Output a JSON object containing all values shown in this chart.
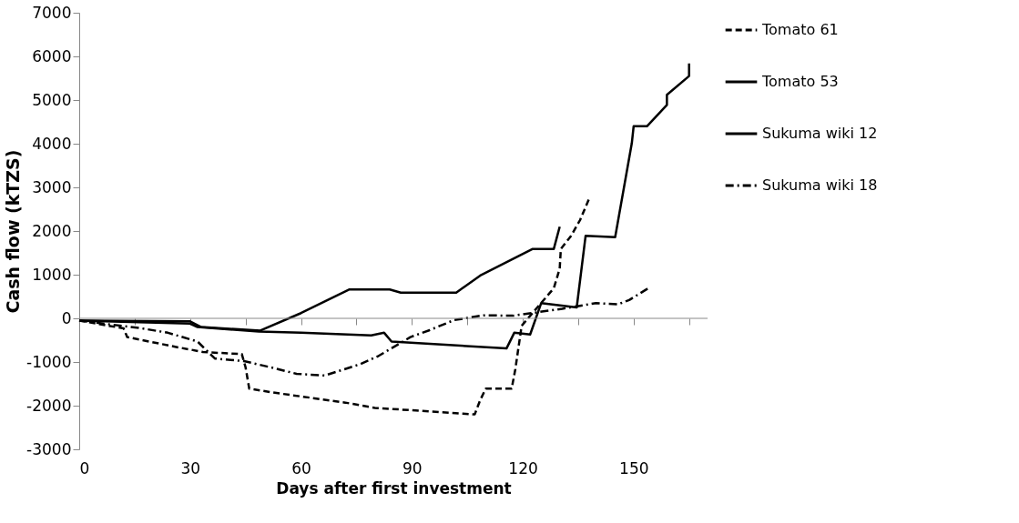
{
  "chart_data": {
    "type": "line",
    "xlabel": "Days after first investment",
    "ylabel": "Cash flow (kTZS)",
    "xlim": [
      0,
      170
    ],
    "ylim": [
      -3000,
      7000
    ],
    "xticks": [
      0,
      {
        "value": 15,
        "label": null
      },
      30,
      {
        "value": 45,
        "label": null
      },
      60,
      {
        "value": 75,
        "label": null
      },
      90,
      {
        "value": 105,
        "label": null
      },
      120,
      {
        "value": 135,
        "label": null
      },
      150,
      {
        "value": 165,
        "label": null
      }
    ],
    "yticks": [
      -3000,
      -2000,
      -1000,
      0,
      1000,
      2000,
      3000,
      4000,
      5000,
      6000,
      7000
    ],
    "grid": false,
    "ref_lines": [
      {
        "axis": "y",
        "value": 0,
        "color": "#888888",
        "line_style": "solid"
      }
    ],
    "legend": "right",
    "marker": "none",
    "series": [
      {
        "name": "Tomato 61",
        "color": "#000000",
        "line_style": "dashed",
        "x": [
          0,
          12,
          13,
          26.5,
          33.5,
          44,
          45,
          46,
          52.5,
          72,
          80,
          107,
          108.5,
          110,
          117,
          118,
          119.7,
          128.4,
          130,
          130.3,
          133,
          135.5,
          138
        ],
        "values": [
          -50,
          -230,
          -430,
          -660,
          -770,
          -820,
          -1120,
          -1610,
          -1700,
          -1930,
          -2050,
          -2200,
          -1870,
          -1610,
          -1610,
          -1160,
          -170,
          690,
          1140,
          1590,
          1880,
          2250,
          2750
        ]
      },
      {
        "name": "Tomato 53",
        "color": "#000000",
        "line_style": "solid",
        "x": [
          0,
          30,
          33,
          49,
          60,
          73,
          84,
          87,
          102,
          108.5,
          122.7,
          128.4,
          130
        ],
        "values": [
          -50,
          -70,
          -200,
          -280,
          120,
          660,
          660,
          590,
          590,
          980,
          1590,
          1590,
          2100
        ]
      },
      {
        "name": "Sukuma wiki 12",
        "color": "#000000",
        "line_style": "solid",
        "x": [
          0,
          30,
          32,
          48.6,
          60,
          79,
          82.5,
          84.5,
          115.6,
          117.7,
          122,
          125,
          134.6,
          137,
          145,
          149.5,
          150,
          153.6,
          159,
          159,
          165,
          165
        ],
        "values": [
          -50,
          -120,
          -200,
          -300,
          -330,
          -390,
          -330,
          -530,
          -690,
          -330,
          -370,
          350,
          250,
          1890,
          1860,
          4010,
          4400,
          4400,
          4890,
          5120,
          5550,
          5840
        ]
      },
      {
        "name": "Sukuma wiki 18",
        "color": "#000000",
        "line_style": "dashdot",
        "x": [
          0,
          17,
          24,
          32,
          36.7,
          44.6,
          51.7,
          58.8,
          66.4,
          76,
          81,
          89.6,
          94.8,
          101.4,
          109.4,
          117.3,
          130.7,
          139.8,
          145.7,
          148.8,
          154
        ],
        "values": [
          -50,
          -230,
          -330,
          -530,
          -920,
          -980,
          -1120,
          -1270,
          -1310,
          -1050,
          -860,
          -430,
          -270,
          -40,
          70,
          60,
          220,
          350,
          320,
          420,
          690
        ]
      }
    ]
  }
}
